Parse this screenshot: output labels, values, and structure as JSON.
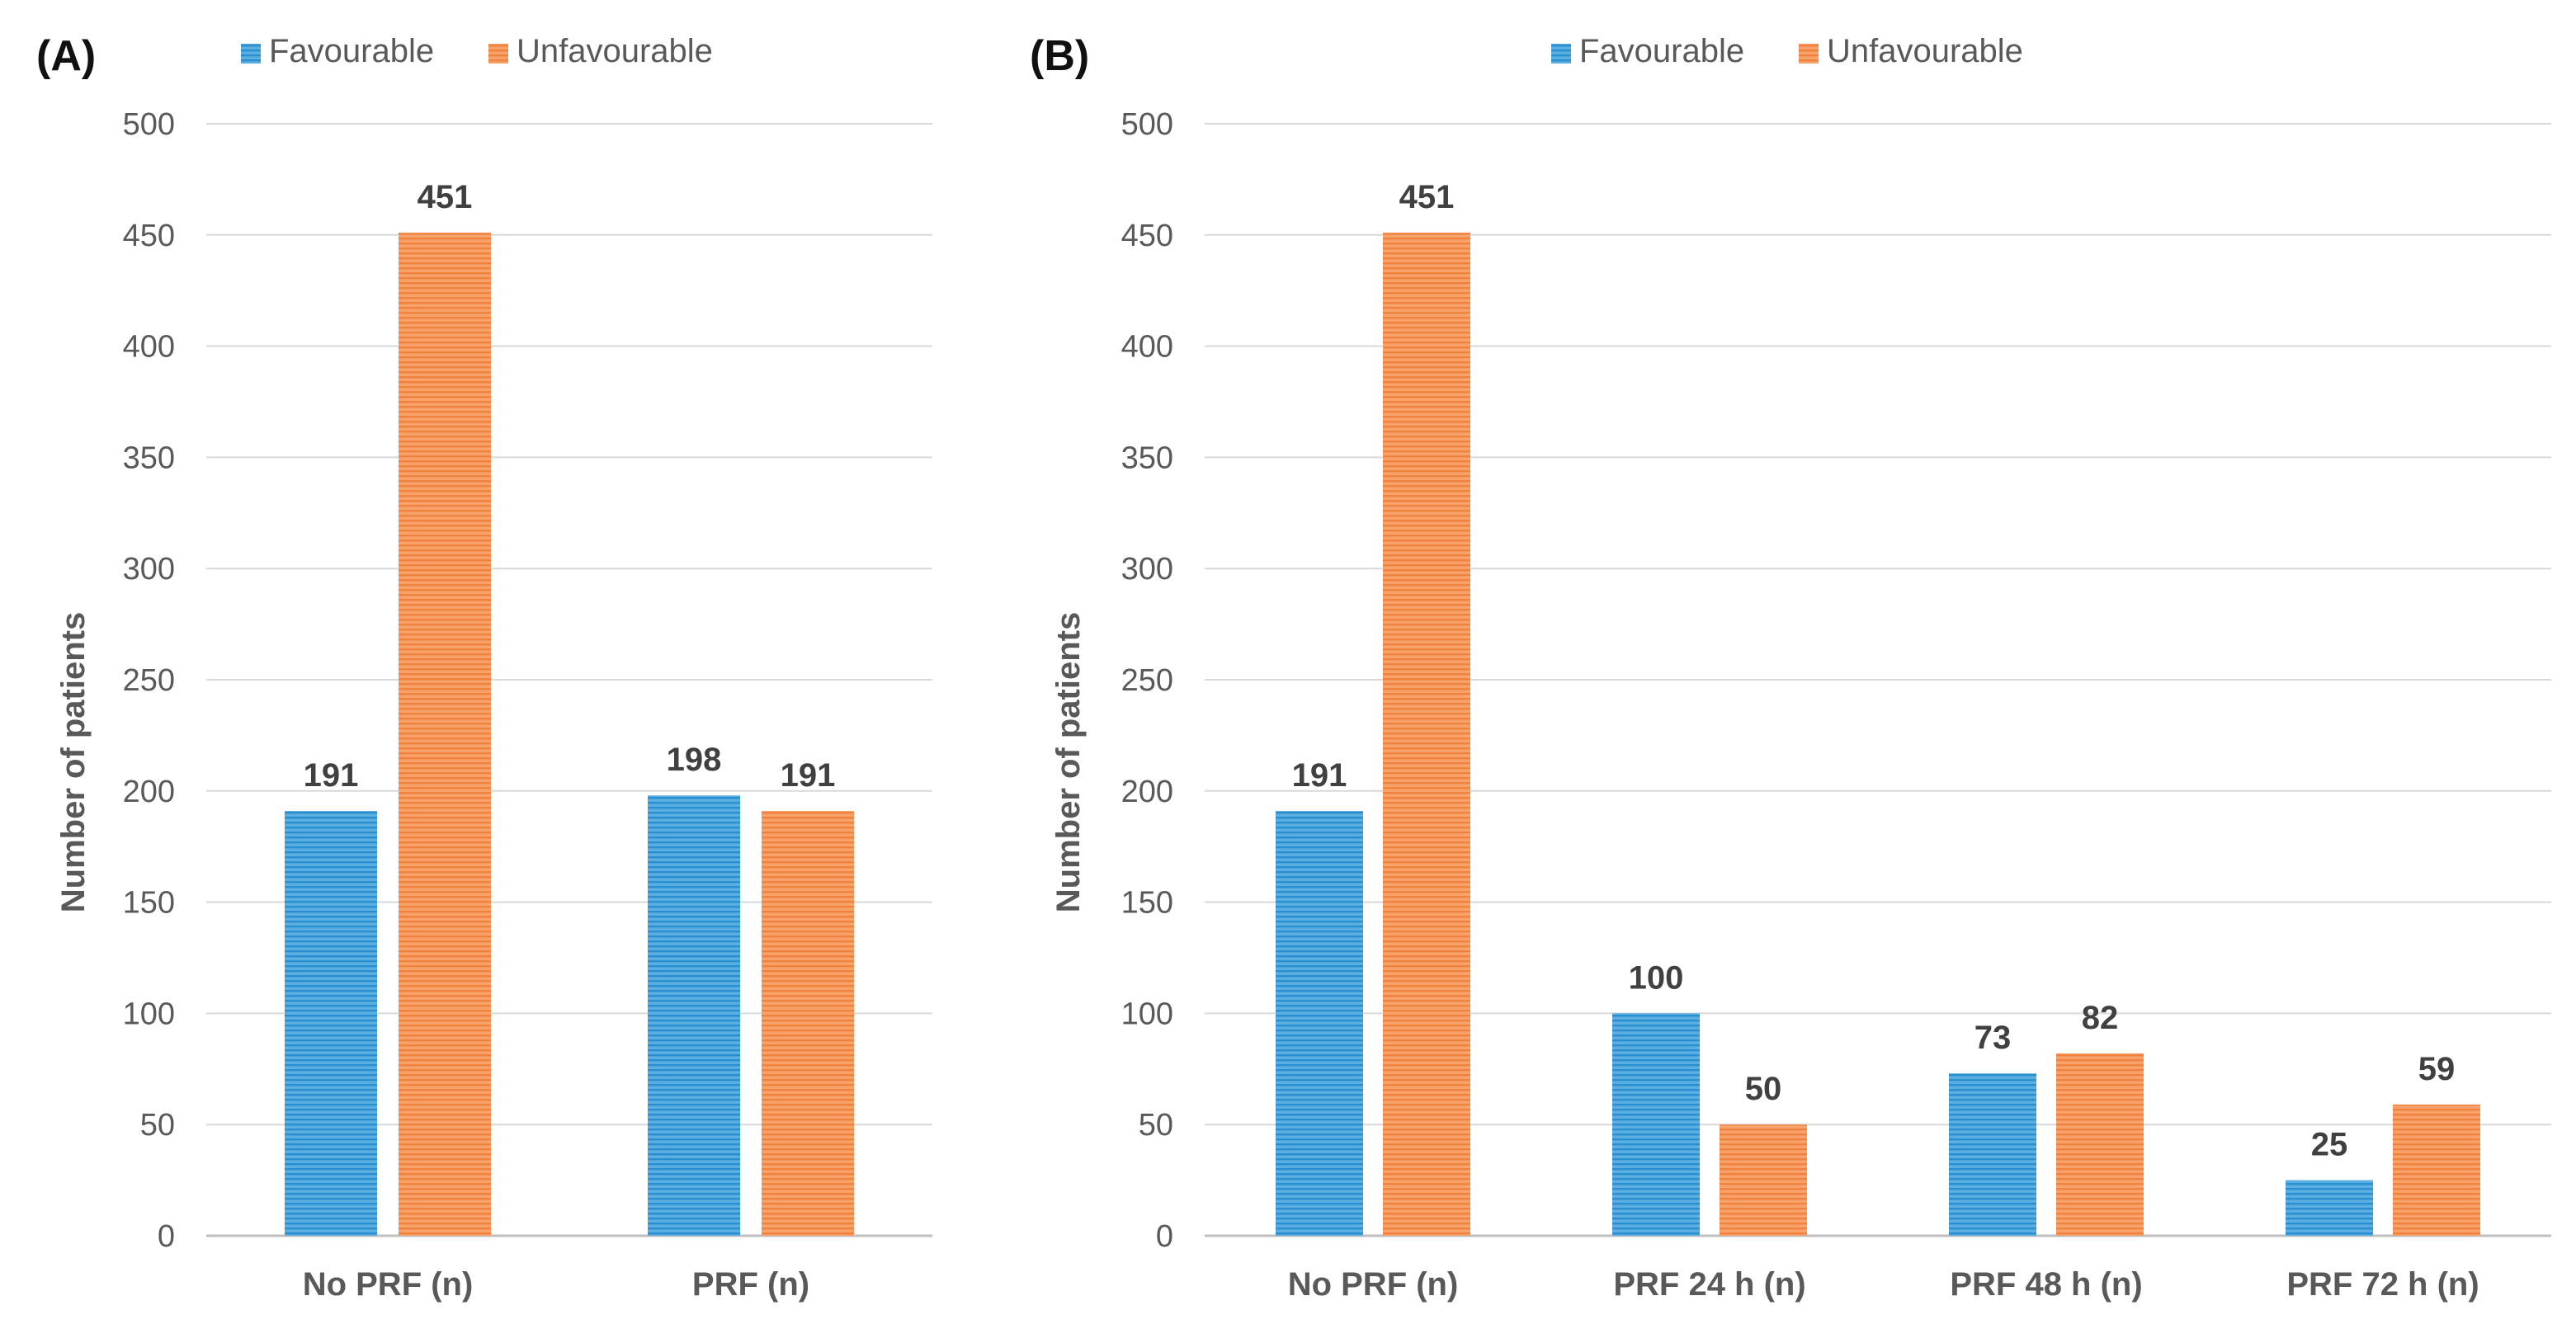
{
  "colors": {
    "favourable": "#5aaee0",
    "favourable_stripe": "#2a8fd0",
    "unfavourable": "#f7a26a",
    "unfavourable_stripe": "#f0813e"
  },
  "chart_data": [
    {
      "type": "bar",
      "panel_label": "(A)",
      "title": "",
      "xlabel": "",
      "ylabel": "Number of patients",
      "ylim": [
        0,
        500
      ],
      "yticks": [
        0,
        50,
        100,
        150,
        200,
        250,
        300,
        350,
        400,
        450,
        500
      ],
      "grid": true,
      "legend_position": "top",
      "categories": [
        "No PRF (n)",
        "PRF (n)"
      ],
      "series": [
        {
          "name": "Favourable",
          "color": "favourable",
          "values": [
            191,
            198
          ]
        },
        {
          "name": "Unfavourable",
          "color": "unfavourable",
          "values": [
            451,
            191
          ]
        }
      ]
    },
    {
      "type": "bar",
      "panel_label": "(B)",
      "title": "",
      "xlabel": "",
      "ylabel": "Number of patients",
      "ylim": [
        0,
        500
      ],
      "yticks": [
        0,
        50,
        100,
        150,
        200,
        250,
        300,
        350,
        400,
        450,
        500
      ],
      "grid": true,
      "legend_position": "top",
      "categories": [
        "No PRF (n)",
        "PRF 24 h (n)",
        "PRF 48 h (n)",
        "PRF 72 h (n)"
      ],
      "series": [
        {
          "name": "Favourable",
          "color": "favourable",
          "values": [
            191,
            100,
            73,
            25
          ]
        },
        {
          "name": "Unfavourable",
          "color": "unfavourable",
          "values": [
            451,
            50,
            82,
            59
          ]
        }
      ]
    }
  ]
}
